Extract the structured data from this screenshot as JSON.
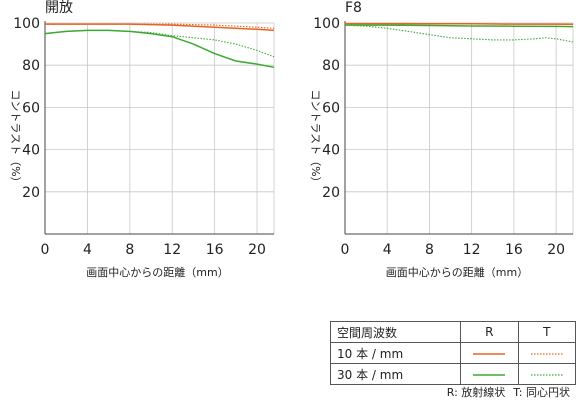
{
  "chart_data": [
    {
      "type": "line",
      "title": "開放",
      "xlabel": "画面中心からの距離（mm）",
      "ylabel": "コントラスト（%）",
      "xlim": [
        0,
        21.6
      ],
      "ylim": [
        0,
        100
      ],
      "xticks": [
        "0",
        "4",
        "8",
        "12",
        "16",
        "20"
      ],
      "yticks": [
        "20",
        "40",
        "60",
        "80",
        "100"
      ],
      "series": [
        {
          "name": "10本/mm R",
          "color": "#e8641e",
          "dash": "solid",
          "x": [
            0,
            4,
            8,
            12,
            16,
            20,
            21.6
          ],
          "y": [
            99.5,
            99.5,
            99.5,
            99,
            98,
            97,
            96.5
          ]
        },
        {
          "name": "10本/mm T",
          "color": "#e8641e",
          "dash": "dotted",
          "x": [
            0,
            4,
            8,
            12,
            16,
            20,
            21.6
          ],
          "y": [
            99.5,
            99.5,
            99.5,
            99.5,
            99,
            98,
            97.5
          ]
        },
        {
          "name": "30本/mm R",
          "color": "#3caa32",
          "dash": "solid",
          "x": [
            0,
            2,
            4,
            6,
            8,
            10,
            12,
            14,
            16,
            18,
            20,
            21.6
          ],
          "y": [
            95,
            96,
            96.5,
            96.5,
            96,
            95,
            93.5,
            90,
            85.5,
            82,
            80.5,
            79
          ]
        },
        {
          "name": "30本/mm T",
          "color": "#3caa32",
          "dash": "dotted",
          "x": [
            0,
            2,
            4,
            6,
            8,
            10,
            12,
            14,
            16,
            18,
            20,
            21.6
          ],
          "y": [
            95,
            96,
            96.5,
            96.5,
            96,
            95.5,
            94,
            93,
            92,
            90,
            87,
            84
          ]
        }
      ]
    },
    {
      "type": "line",
      "title": "F8",
      "xlabel": "画面中心からの距離（mm）",
      "ylabel": "コントラスト（%）",
      "xlim": [
        0,
        21.6
      ],
      "ylim": [
        0,
        100
      ],
      "xticks": [
        "0",
        "4",
        "8",
        "12",
        "16",
        "20"
      ],
      "yticks": [
        "20",
        "40",
        "60",
        "80",
        "100"
      ],
      "series": [
        {
          "name": "10本/mm R",
          "color": "#e8641e",
          "dash": "solid",
          "x": [
            0,
            4,
            8,
            12,
            16,
            20,
            21.6
          ],
          "y": [
            99.7,
            99.7,
            99.6,
            99.6,
            99.5,
            99.5,
            99.4
          ]
        },
        {
          "name": "10本/mm T",
          "color": "#e8641e",
          "dash": "dotted",
          "x": [
            0,
            4,
            8,
            12,
            16,
            20,
            21.6
          ],
          "y": [
            99.7,
            99.7,
            99.6,
            99.6,
            99.5,
            99.5,
            99.4
          ]
        },
        {
          "name": "30本/mm R",
          "color": "#3caa32",
          "dash": "solid",
          "x": [
            0,
            4,
            8,
            12,
            16,
            20,
            21.6
          ],
          "y": [
            99,
            99,
            98.8,
            98.6,
            98.5,
            98.4,
            98.3
          ]
        },
        {
          "name": "30本/mm T",
          "color": "#3caa32",
          "dash": "dotted",
          "x": [
            0,
            2,
            4,
            6,
            8,
            10,
            12,
            14,
            16,
            18,
            19,
            20,
            21.6
          ],
          "y": [
            99,
            98.5,
            97.5,
            96,
            94.5,
            93,
            92.5,
            92,
            92,
            92.5,
            93,
            92.5,
            91
          ]
        }
      ]
    }
  ],
  "legend": {
    "header": [
      "空間周波数",
      "R",
      "T"
    ],
    "rows": [
      {
        "label": "10 本 / mm",
        "color": "#e8641e"
      },
      {
        "label": "30 本 / mm",
        "color": "#3caa32"
      }
    ]
  },
  "footnote": {
    "r": "R: 放射線状",
    "t": "T: 同心円状"
  }
}
